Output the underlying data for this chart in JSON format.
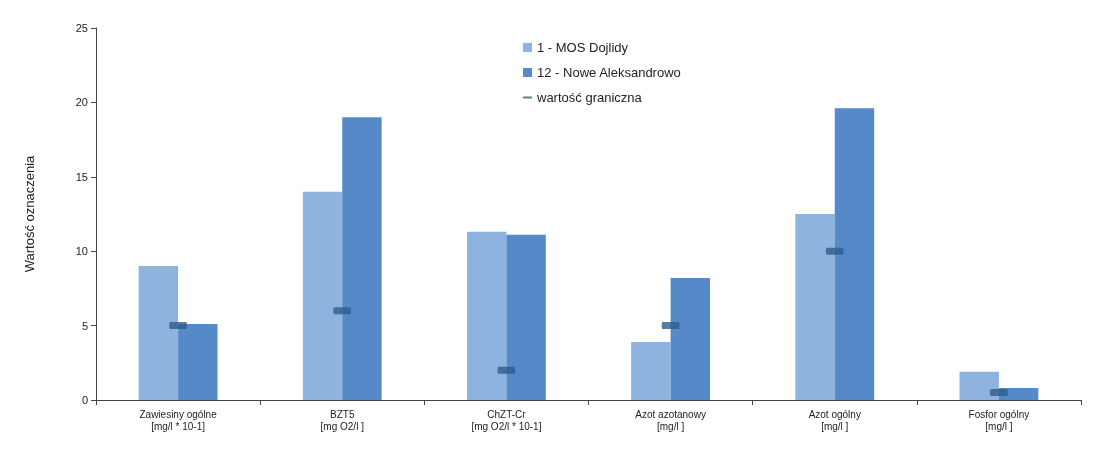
{
  "chart_data": {
    "type": "bar",
    "ylabel": "Wartość oznaczenia",
    "categories": [
      "Zawiesiny ogólne\n[mg/l * 10-1]",
      "BZT5\n[mg O2/l ]",
      "ChZT-Cr\n[mg O2/l * 10-1]",
      "Azot azotanowy\n[mg/l ]",
      "Azot ogólny\n[mg/l ]",
      "Fosfor ogólny\n[mg/l ]"
    ],
    "series": [
      {
        "name": "1 - MOS Dojlidy",
        "color": "#8eb3de",
        "values": [
          9.0,
          14.0,
          11.3,
          3.9,
          12.5,
          1.9
        ]
      },
      {
        "name": "12 - Nowe Aleksandrowo",
        "color": "#5589c8",
        "values": [
          5.1,
          19.0,
          11.1,
          8.2,
          19.6,
          0.8
        ]
      },
      {
        "name": "wartość graniczna",
        "type": "scatter",
        "color": "#2e5c8f",
        "values": [
          5.0,
          6.0,
          2.0,
          5.0,
          10.0,
          0.5
        ]
      }
    ],
    "ylim": [
      0,
      25
    ],
    "yticks": [
      0,
      5,
      10,
      15,
      20,
      25
    ],
    "grid": false,
    "legend": "top"
  }
}
